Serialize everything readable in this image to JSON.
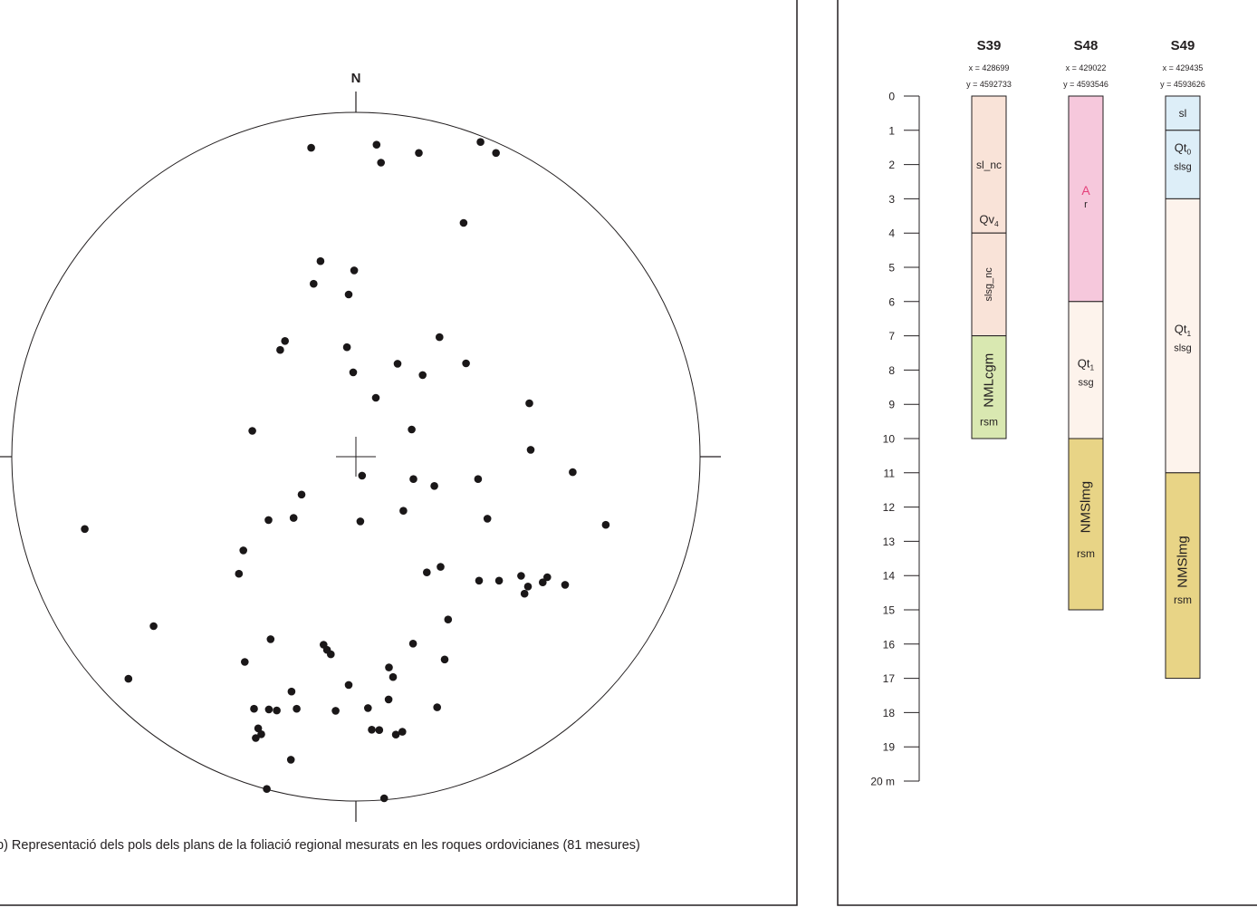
{
  "stereonet": {
    "north_label": "N",
    "caption": "b) Representació dels pols dels plans de la foliació regional mesurats en les roques ordovicianes (81 mesures)",
    "pole_count": 81,
    "poles": [
      [
        -0.13,
        0.897
      ],
      [
        0.06,
        0.906
      ],
      [
        0.073,
        0.854
      ],
      [
        0.183,
        0.882
      ],
      [
        0.362,
        0.914
      ],
      [
        0.407,
        0.882
      ],
      [
        0.313,
        0.679
      ],
      [
        -0.103,
        0.568
      ],
      [
        -0.005,
        0.541
      ],
      [
        -0.123,
        0.502
      ],
      [
        -0.021,
        0.471
      ],
      [
        -0.206,
        0.336
      ],
      [
        -0.22,
        0.31
      ],
      [
        -0.026,
        0.318
      ],
      [
        -0.008,
        0.245
      ],
      [
        0.121,
        0.27
      ],
      [
        0.194,
        0.237
      ],
      [
        0.243,
        0.347
      ],
      [
        0.32,
        0.271
      ],
      [
        0.058,
        0.171
      ],
      [
        -0.301,
        0.075
      ],
      [
        0.162,
        0.079
      ],
      [
        0.504,
        0.155
      ],
      [
        0.508,
        0.02
      ],
      [
        0.63,
        -0.045
      ],
      [
        0.018,
        -0.055
      ],
      [
        0.167,
        -0.065
      ],
      [
        0.228,
        -0.085
      ],
      [
        0.355,
        -0.065
      ],
      [
        -0.158,
        -0.11
      ],
      [
        -0.254,
        -0.184
      ],
      [
        -0.181,
        -0.178
      ],
      [
        0.013,
        -0.188
      ],
      [
        0.138,
        -0.157
      ],
      [
        0.382,
        -0.18
      ],
      [
        -0.788,
        -0.21
      ],
      [
        0.726,
        -0.198
      ],
      [
        -0.327,
        -0.272
      ],
      [
        -0.34,
        -0.34
      ],
      [
        0.206,
        -0.336
      ],
      [
        0.246,
        -0.32
      ],
      [
        0.358,
        -0.36
      ],
      [
        0.416,
        -0.36
      ],
      [
        0.48,
        -0.346
      ],
      [
        0.49,
        -0.398
      ],
      [
        0.5,
        -0.377
      ],
      [
        0.556,
        -0.35
      ],
      [
        0.543,
        -0.365
      ],
      [
        0.608,
        -0.372
      ],
      [
        -0.588,
        -0.492
      ],
      [
        -0.248,
        -0.53
      ],
      [
        0.268,
        -0.473
      ],
      [
        0.166,
        -0.543
      ],
      [
        -0.323,
        -0.596
      ],
      [
        -0.094,
        -0.546
      ],
      [
        -0.084,
        -0.561
      ],
      [
        -0.073,
        -0.574
      ],
      [
        0.096,
        -0.612
      ],
      [
        0.108,
        -0.64
      ],
      [
        0.258,
        -0.589
      ],
      [
        -0.661,
        -0.645
      ],
      [
        -0.021,
        -0.663
      ],
      [
        -0.187,
        -0.682
      ],
      [
        0.095,
        -0.705
      ],
      [
        -0.296,
        -0.732
      ],
      [
        -0.253,
        -0.734
      ],
      [
        -0.23,
        -0.737
      ],
      [
        -0.172,
        -0.732
      ],
      [
        -0.059,
        -0.738
      ],
      [
        0.035,
        -0.73
      ],
      [
        0.236,
        -0.728
      ],
      [
        -0.284,
        -0.789
      ],
      [
        -0.275,
        -0.806
      ],
      [
        0.046,
        -0.793
      ],
      [
        0.068,
        -0.794
      ],
      [
        0.116,
        -0.807
      ],
      [
        0.135,
        -0.799
      ],
      [
        -0.291,
        -0.817
      ],
      [
        -0.189,
        -0.88
      ],
      [
        -0.259,
        -0.965
      ],
      [
        0.082,
        -0.992
      ]
    ]
  },
  "logs": {
    "depth_axis": {
      "ticks": [
        "0",
        "1",
        "2",
        "3",
        "4",
        "5",
        "6",
        "7",
        "8",
        "9",
        "10",
        "11",
        "12",
        "13",
        "14",
        "15",
        "16",
        "17",
        "18",
        "19",
        "20 m"
      ],
      "max": 20
    },
    "columns": [
      {
        "name": "S39",
        "x_coord": "x = 428699",
        "y_coord": "y = 4592733",
        "units": [
          {
            "top": 0,
            "bottom": 4,
            "color": "#f9e3d8",
            "lines": [
              {
                "text": "sl_nc",
                "depth": 2,
                "size": 12
              },
              {
                "text": "Qv",
                "sub": "4",
                "depth": 3.6,
                "size": 13
              }
            ]
          },
          {
            "top": 4,
            "bottom": 7,
            "color": "#f9e3d8",
            "lines": [
              {
                "text": "slsg_nc",
                "depth": 5.5,
                "size": 11,
                "vertical": true
              }
            ]
          },
          {
            "top": 7,
            "bottom": 10,
            "color": "#d9e8b1",
            "lines": [
              {
                "text": "NMLcgm",
                "depth": 8.3,
                "size": 15,
                "vertical": true
              },
              {
                "text": "rsm",
                "depth": 9.5,
                "size": 12
              }
            ]
          }
        ]
      },
      {
        "name": "S48",
        "x_coord": "x = 429022",
        "y_coord": "y = 4593546",
        "units": [
          {
            "top": 0,
            "bottom": 6,
            "color": "#f6c8dc",
            "lines": [
              {
                "text": "A",
                "depth": 2.75,
                "size": 14,
                "color": "#e5407a"
              },
              {
                "text": "r",
                "depth": 3.15,
                "size": 11
              }
            ]
          },
          {
            "top": 6,
            "bottom": 10,
            "color": "#fdf3ec",
            "lines": [
              {
                "text": "Qt",
                "sub": "1",
                "depth": 7.8,
                "size": 13
              },
              {
                "text": "ssg",
                "depth": 8.35,
                "size": 11
              }
            ]
          },
          {
            "top": 10,
            "bottom": 15,
            "color": "#e8d486",
            "lines": [
              {
                "text": "NMSlmg",
                "depth": 12.0,
                "size": 15,
                "vertical": true
              },
              {
                "text": "rsm",
                "depth": 13.35,
                "size": 12
              }
            ]
          }
        ]
      },
      {
        "name": "S49",
        "x_coord": "x = 429435",
        "y_coord": "y = 4593626",
        "units": [
          {
            "top": 0,
            "bottom": 1,
            "color": "#ddeef8",
            "lines": [
              {
                "text": "sl",
                "depth": 0.5,
                "size": 12
              }
            ]
          },
          {
            "top": 1,
            "bottom": 3,
            "color": "#ddeef8",
            "lines": [
              {
                "text": "Qt",
                "sub": "0",
                "depth": 1.5,
                "size": 13
              },
              {
                "text": "slsg",
                "depth": 2.05,
                "size": 11
              }
            ]
          },
          {
            "top": 3,
            "bottom": 11,
            "color": "#fdf3ec",
            "lines": [
              {
                "text": "Qt",
                "sub": "1",
                "depth": 6.8,
                "size": 13
              },
              {
                "text": "slsg",
                "depth": 7.35,
                "size": 11
              }
            ]
          },
          {
            "top": 11,
            "bottom": 17,
            "color": "#e8d486",
            "lines": [
              {
                "text": "NMSlmg",
                "depth": 13.6,
                "size": 15,
                "vertical": true
              },
              {
                "text": "rsm",
                "depth": 14.7,
                "size": 12
              }
            ]
          }
        ]
      }
    ]
  }
}
